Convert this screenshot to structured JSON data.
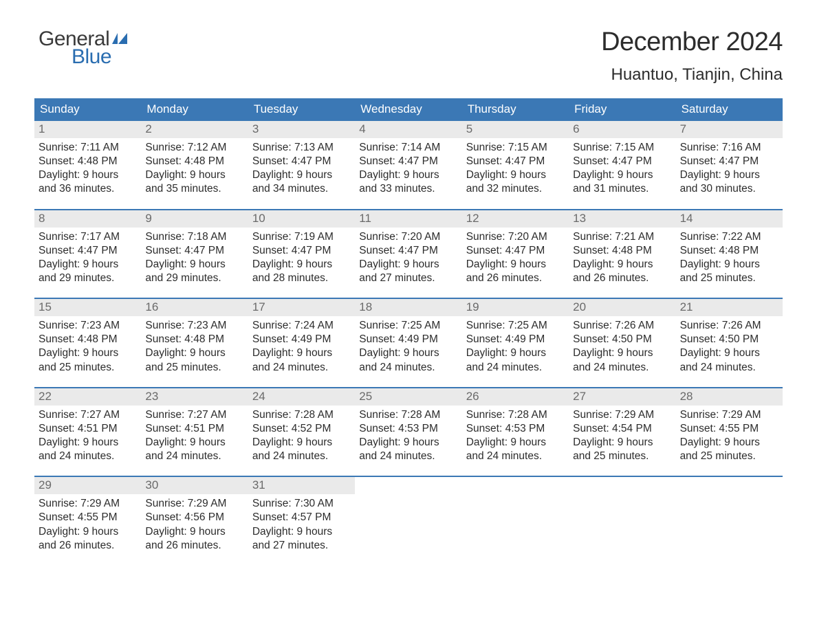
{
  "brand": {
    "text1": "General",
    "text2": "Blue",
    "flag_color": "#2a6db0"
  },
  "header": {
    "month_title": "December 2024",
    "location": "Huantuo, Tianjin, China"
  },
  "colors": {
    "header_bg": "#3b78b5",
    "header_text": "#ffffff",
    "daynum_bg": "#eaeaea",
    "daynum_text": "#6a6a6a",
    "body_text": "#2c2c2c",
    "page_bg": "#ffffff"
  },
  "typography": {
    "title_fontsize": 38,
    "location_fontsize": 24,
    "dow_fontsize": 17,
    "body_fontsize": 15.5
  },
  "days_of_week": [
    "Sunday",
    "Monday",
    "Tuesday",
    "Wednesday",
    "Thursday",
    "Friday",
    "Saturday"
  ],
  "weeks": [
    [
      {
        "n": "1",
        "sunrise": "Sunrise: 7:11 AM",
        "sunset": "Sunset: 4:48 PM",
        "day1": "Daylight: 9 hours",
        "day2": "and 36 minutes."
      },
      {
        "n": "2",
        "sunrise": "Sunrise: 7:12 AM",
        "sunset": "Sunset: 4:48 PM",
        "day1": "Daylight: 9 hours",
        "day2": "and 35 minutes."
      },
      {
        "n": "3",
        "sunrise": "Sunrise: 7:13 AM",
        "sunset": "Sunset: 4:47 PM",
        "day1": "Daylight: 9 hours",
        "day2": "and 34 minutes."
      },
      {
        "n": "4",
        "sunrise": "Sunrise: 7:14 AM",
        "sunset": "Sunset: 4:47 PM",
        "day1": "Daylight: 9 hours",
        "day2": "and 33 minutes."
      },
      {
        "n": "5",
        "sunrise": "Sunrise: 7:15 AM",
        "sunset": "Sunset: 4:47 PM",
        "day1": "Daylight: 9 hours",
        "day2": "and 32 minutes."
      },
      {
        "n": "6",
        "sunrise": "Sunrise: 7:15 AM",
        "sunset": "Sunset: 4:47 PM",
        "day1": "Daylight: 9 hours",
        "day2": "and 31 minutes."
      },
      {
        "n": "7",
        "sunrise": "Sunrise: 7:16 AM",
        "sunset": "Sunset: 4:47 PM",
        "day1": "Daylight: 9 hours",
        "day2": "and 30 minutes."
      }
    ],
    [
      {
        "n": "8",
        "sunrise": "Sunrise: 7:17 AM",
        "sunset": "Sunset: 4:47 PM",
        "day1": "Daylight: 9 hours",
        "day2": "and 29 minutes."
      },
      {
        "n": "9",
        "sunrise": "Sunrise: 7:18 AM",
        "sunset": "Sunset: 4:47 PM",
        "day1": "Daylight: 9 hours",
        "day2": "and 29 minutes."
      },
      {
        "n": "10",
        "sunrise": "Sunrise: 7:19 AM",
        "sunset": "Sunset: 4:47 PM",
        "day1": "Daylight: 9 hours",
        "day2": "and 28 minutes."
      },
      {
        "n": "11",
        "sunrise": "Sunrise: 7:20 AM",
        "sunset": "Sunset: 4:47 PM",
        "day1": "Daylight: 9 hours",
        "day2": "and 27 minutes."
      },
      {
        "n": "12",
        "sunrise": "Sunrise: 7:20 AM",
        "sunset": "Sunset: 4:47 PM",
        "day1": "Daylight: 9 hours",
        "day2": "and 26 minutes."
      },
      {
        "n": "13",
        "sunrise": "Sunrise: 7:21 AM",
        "sunset": "Sunset: 4:48 PM",
        "day1": "Daylight: 9 hours",
        "day2": "and 26 minutes."
      },
      {
        "n": "14",
        "sunrise": "Sunrise: 7:22 AM",
        "sunset": "Sunset: 4:48 PM",
        "day1": "Daylight: 9 hours",
        "day2": "and 25 minutes."
      }
    ],
    [
      {
        "n": "15",
        "sunrise": "Sunrise: 7:23 AM",
        "sunset": "Sunset: 4:48 PM",
        "day1": "Daylight: 9 hours",
        "day2": "and 25 minutes."
      },
      {
        "n": "16",
        "sunrise": "Sunrise: 7:23 AM",
        "sunset": "Sunset: 4:48 PM",
        "day1": "Daylight: 9 hours",
        "day2": "and 25 minutes."
      },
      {
        "n": "17",
        "sunrise": "Sunrise: 7:24 AM",
        "sunset": "Sunset: 4:49 PM",
        "day1": "Daylight: 9 hours",
        "day2": "and 24 minutes."
      },
      {
        "n": "18",
        "sunrise": "Sunrise: 7:25 AM",
        "sunset": "Sunset: 4:49 PM",
        "day1": "Daylight: 9 hours",
        "day2": "and 24 minutes."
      },
      {
        "n": "19",
        "sunrise": "Sunrise: 7:25 AM",
        "sunset": "Sunset: 4:49 PM",
        "day1": "Daylight: 9 hours",
        "day2": "and 24 minutes."
      },
      {
        "n": "20",
        "sunrise": "Sunrise: 7:26 AM",
        "sunset": "Sunset: 4:50 PM",
        "day1": "Daylight: 9 hours",
        "day2": "and 24 minutes."
      },
      {
        "n": "21",
        "sunrise": "Sunrise: 7:26 AM",
        "sunset": "Sunset: 4:50 PM",
        "day1": "Daylight: 9 hours",
        "day2": "and 24 minutes."
      }
    ],
    [
      {
        "n": "22",
        "sunrise": "Sunrise: 7:27 AM",
        "sunset": "Sunset: 4:51 PM",
        "day1": "Daylight: 9 hours",
        "day2": "and 24 minutes."
      },
      {
        "n": "23",
        "sunrise": "Sunrise: 7:27 AM",
        "sunset": "Sunset: 4:51 PM",
        "day1": "Daylight: 9 hours",
        "day2": "and 24 minutes."
      },
      {
        "n": "24",
        "sunrise": "Sunrise: 7:28 AM",
        "sunset": "Sunset: 4:52 PM",
        "day1": "Daylight: 9 hours",
        "day2": "and 24 minutes."
      },
      {
        "n": "25",
        "sunrise": "Sunrise: 7:28 AM",
        "sunset": "Sunset: 4:53 PM",
        "day1": "Daylight: 9 hours",
        "day2": "and 24 minutes."
      },
      {
        "n": "26",
        "sunrise": "Sunrise: 7:28 AM",
        "sunset": "Sunset: 4:53 PM",
        "day1": "Daylight: 9 hours",
        "day2": "and 24 minutes."
      },
      {
        "n": "27",
        "sunrise": "Sunrise: 7:29 AM",
        "sunset": "Sunset: 4:54 PM",
        "day1": "Daylight: 9 hours",
        "day2": "and 25 minutes."
      },
      {
        "n": "28",
        "sunrise": "Sunrise: 7:29 AM",
        "sunset": "Sunset: 4:55 PM",
        "day1": "Daylight: 9 hours",
        "day2": "and 25 minutes."
      }
    ],
    [
      {
        "n": "29",
        "sunrise": "Sunrise: 7:29 AM",
        "sunset": "Sunset: 4:55 PM",
        "day1": "Daylight: 9 hours",
        "day2": "and 26 minutes."
      },
      {
        "n": "30",
        "sunrise": "Sunrise: 7:29 AM",
        "sunset": "Sunset: 4:56 PM",
        "day1": "Daylight: 9 hours",
        "day2": "and 26 minutes."
      },
      {
        "n": "31",
        "sunrise": "Sunrise: 7:30 AM",
        "sunset": "Sunset: 4:57 PM",
        "day1": "Daylight: 9 hours",
        "day2": "and 27 minutes."
      },
      null,
      null,
      null,
      null
    ]
  ]
}
